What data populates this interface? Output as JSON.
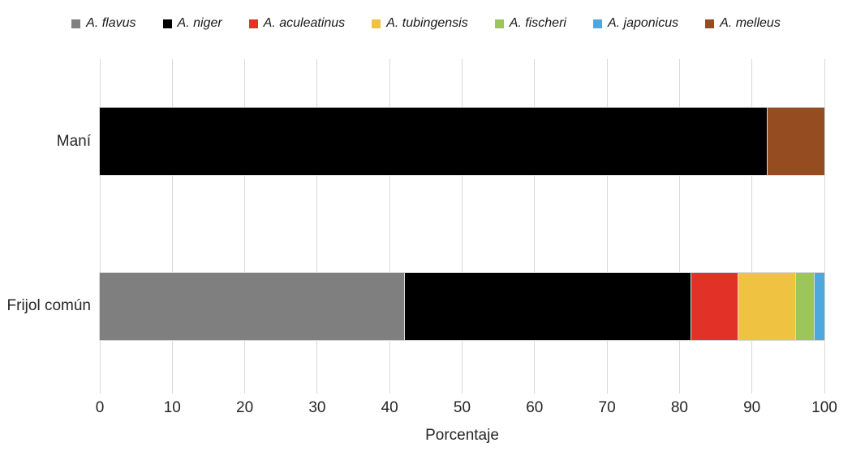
{
  "chart_data": {
    "type": "bar",
    "orientation": "horizontal",
    "stacked": true,
    "title": "",
    "xlabel": "Porcentaje",
    "ylabel": "",
    "xlim": [
      0,
      100
    ],
    "xticks": [
      0,
      10,
      20,
      30,
      40,
      50,
      60,
      70,
      80,
      90,
      100
    ],
    "grid": true,
    "legend_position": "top",
    "categories": [
      "Maní",
      "Frijol común"
    ],
    "series": [
      {
        "name": "A. flavus",
        "color": "#7f7f7f",
        "values": [
          0,
          42
        ]
      },
      {
        "name": "A. niger",
        "color": "#000000",
        "values": [
          92,
          39.5
        ]
      },
      {
        "name": "A. aculeatinus",
        "color": "#e23127",
        "values": [
          0,
          6.5
        ]
      },
      {
        "name": "A. tubingensis",
        "color": "#f0c242",
        "values": [
          0,
          8
        ]
      },
      {
        "name": "A. fischeri",
        "color": "#9cc65b",
        "values": [
          0,
          2.5
        ]
      },
      {
        "name": "A. japonicus",
        "color": "#4fa7e0",
        "values": [
          0,
          1.5
        ]
      },
      {
        "name": "A. melleus",
        "color": "#944c20",
        "values": [
          8,
          0
        ]
      }
    ],
    "grid_color": "#d9d9d9",
    "text_color": "#262626"
  }
}
